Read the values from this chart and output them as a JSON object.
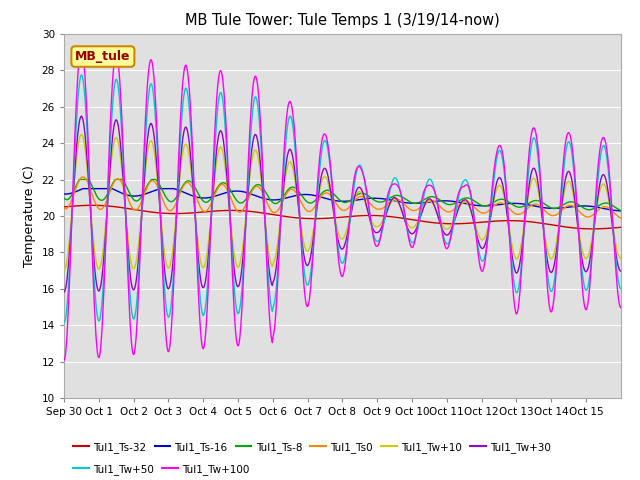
{
  "title": "MB Tule Tower: Tule Temps 1 (3/19/14-now)",
  "ylabel": "Temperature (C)",
  "ylim": [
    10,
    30
  ],
  "yticks": [
    10,
    12,
    14,
    16,
    18,
    20,
    22,
    24,
    26,
    28,
    30
  ],
  "n_days": 16,
  "x_tick_labels": [
    "Sep 30",
    "Oct 1",
    "Oct 2",
    "Oct 3",
    "Oct 4",
    "Oct 5",
    "Oct 6",
    "Oct 7",
    "Oct 8",
    "Oct 9",
    "Oct 10",
    "Oct 11",
    "Oct 12",
    "Oct 13",
    "Oct 14",
    "Oct 15"
  ],
  "bg_color": "#e0e0e0",
  "series": [
    {
      "label": "Tul1_Ts-32",
      "color": "#cc0000"
    },
    {
      "label": "Tul1_Ts-16",
      "color": "#0000cc"
    },
    {
      "label": "Tul1_Ts-8",
      "color": "#00aa00"
    },
    {
      "label": "Tul1_Ts0",
      "color": "#ff8800"
    },
    {
      "label": "Tul1_Tw+10",
      "color": "#cccc00"
    },
    {
      "label": "Tul1_Tw+30",
      "color": "#9900cc"
    },
    {
      "label": "Tul1_Tw+50",
      "color": "#00cccc"
    },
    {
      "label": "Tul1_Tw+100",
      "color": "#ff00ff"
    }
  ],
  "legend_text": "MB_tule",
  "legend_text_color": "#990000",
  "legend_box_fc": "#ffff99",
  "legend_box_ec": "#cc8800"
}
